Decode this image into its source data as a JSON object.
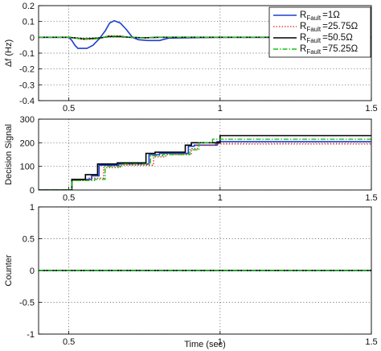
{
  "chart_data": [
    {
      "type": "line",
      "panel": "frequency deviation",
      "ylabel": "Δf (Hz)",
      "ylim": [
        -0.4,
        0.2
      ],
      "xlim": [
        0.4,
        1.5
      ],
      "xticks": [
        "0.5",
        "1",
        "1.5"
      ],
      "yticks": [
        "-0.4",
        "-0.3",
        "-0.2",
        "-0.1",
        "0",
        "0.1",
        "0.2"
      ],
      "grid": true,
      "legend_position": "top-right",
      "legend": [
        {
          "base": "R",
          "sub": "Fault",
          "suffix": "=1Ω"
        },
        {
          "base": "R",
          "sub": "Fault",
          "suffix": "=25.75Ω"
        },
        {
          "base": "R",
          "sub": "Fault",
          "suffix": "=50.5Ω"
        },
        {
          "base": "R",
          "sub": "Fault",
          "suffix": "=75.25Ω"
        }
      ],
      "series": [
        {
          "key": "r1",
          "x": [
            0.4,
            0.5,
            0.51,
            0.52,
            0.53,
            0.56,
            0.58,
            0.6,
            0.62,
            0.635,
            0.65,
            0.67,
            0.69,
            0.71,
            0.73,
            0.76,
            0.8,
            0.83,
            1.0,
            1.5
          ],
          "y": [
            0,
            0,
            -0.02,
            -0.05,
            -0.07,
            -0.07,
            -0.05,
            -0.01,
            0.04,
            0.09,
            0.105,
            0.09,
            0.05,
            0.0,
            -0.015,
            -0.02,
            -0.02,
            -0.005,
            0,
            0
          ]
        },
        {
          "key": "r2",
          "x": [
            0.4,
            0.5,
            0.55,
            0.6,
            0.63,
            0.67,
            0.7,
            0.75,
            0.8,
            1.5
          ],
          "y": [
            0,
            0,
            -0.015,
            -0.01,
            0.01,
            0.01,
            0.0,
            -0.005,
            0,
            0
          ]
        },
        {
          "key": "r3",
          "x": [
            0.4,
            0.5,
            0.55,
            0.6,
            0.63,
            0.67,
            0.7,
            0.75,
            0.8,
            1.5
          ],
          "y": [
            0,
            0,
            -0.01,
            -0.005,
            0.005,
            0.005,
            0.0,
            -0.003,
            0,
            0
          ]
        },
        {
          "key": "r4",
          "x": [
            0.4,
            0.5,
            0.55,
            0.6,
            0.63,
            0.67,
            0.7,
            0.75,
            0.8,
            1.5
          ],
          "y": [
            0,
            0,
            -0.012,
            -0.008,
            0.008,
            0.008,
            0.0,
            -0.004,
            0,
            0
          ]
        }
      ]
    },
    {
      "type": "line",
      "panel": "decision signal",
      "ylabel": "Decision Signal",
      "ylim": [
        0,
        300
      ],
      "xlim": [
        0.4,
        1.5
      ],
      "xticks": [
        "0.5",
        "1",
        "1.5"
      ],
      "yticks": [
        "0",
        "100",
        "200",
        "300"
      ],
      "grid": true,
      "series": [
        {
          "key": "r1",
          "x": [
            0.4,
            0.51,
            0.51,
            0.575,
            0.575,
            0.6,
            0.6,
            0.665,
            0.665,
            0.765,
            0.765,
            0.8,
            0.8,
            0.895,
            0.895,
            0.915,
            0.915,
            0.99,
            0.99,
            1.5
          ],
          "y": [
            0,
            0,
            45,
            45,
            60,
            60,
            105,
            105,
            110,
            110,
            150,
            150,
            155,
            155,
            185,
            185,
            190,
            190,
            205,
            205
          ]
        },
        {
          "key": "r2",
          "x": [
            0.4,
            0.51,
            0.51,
            0.565,
            0.565,
            0.615,
            0.615,
            0.67,
            0.67,
            0.78,
            0.78,
            0.82,
            0.82,
            0.905,
            0.905,
            0.925,
            0.925,
            0.985,
            0.985,
            1.5
          ],
          "y": [
            0,
            0,
            40,
            40,
            50,
            50,
            95,
            95,
            105,
            105,
            140,
            140,
            150,
            150,
            175,
            175,
            190,
            190,
            195,
            195
          ]
        },
        {
          "key": "r3",
          "x": [
            0.4,
            0.51,
            0.51,
            0.555,
            0.555,
            0.595,
            0.595,
            0.66,
            0.66,
            0.755,
            0.755,
            0.785,
            0.785,
            0.885,
            0.885,
            0.905,
            0.905,
            1.0,
            1.0,
            1.5
          ],
          "y": [
            0,
            0,
            45,
            45,
            65,
            65,
            110,
            110,
            115,
            115,
            155,
            155,
            160,
            160,
            190,
            190,
            200,
            200,
            230,
            230
          ]
        },
        {
          "key": "r4",
          "x": [
            0.4,
            0.51,
            0.51,
            0.585,
            0.585,
            0.62,
            0.62,
            0.675,
            0.675,
            0.77,
            0.77,
            0.81,
            0.81,
            0.9,
            0.9,
            0.93,
            0.93,
            0.975,
            0.975,
            1.5
          ],
          "y": [
            0,
            0,
            40,
            40,
            45,
            45,
            100,
            100,
            110,
            110,
            145,
            145,
            150,
            150,
            170,
            170,
            200,
            200,
            215,
            215
          ]
        }
      ]
    },
    {
      "type": "line",
      "panel": "counter",
      "ylabel": "Counter",
      "xlabel": "Time (sec)",
      "ylim": [
        -1,
        1
      ],
      "xlim": [
        0.4,
        1.5
      ],
      "xticks": [
        "0.5",
        "1",
        "1.5"
      ],
      "yticks": [
        "-1",
        "-0.5",
        "0",
        "0.5",
        "1"
      ],
      "grid": true,
      "series": [
        {
          "key": "r1",
          "x": [
            0.4,
            1.5
          ],
          "y": [
            0,
            0
          ]
        },
        {
          "key": "r2",
          "x": [
            0.4,
            1.5
          ],
          "y": [
            0,
            0
          ]
        },
        {
          "key": "r3",
          "x": [
            0.4,
            1.5
          ],
          "y": [
            0,
            0
          ]
        },
        {
          "key": "r4",
          "x": [
            0.4,
            1.5
          ],
          "y": [
            0,
            0
          ]
        }
      ]
    }
  ],
  "series_style": {
    "r1": {
      "color": "#1f3ecf",
      "dash": "",
      "width": 1.6
    },
    "r2": {
      "color": "#e0201a",
      "dash": "1.5,2",
      "width": 1.3
    },
    "r3": {
      "color": "#000000",
      "dash": "",
      "width": 1.6
    },
    "r4": {
      "color": "#18c018",
      "dash": "6,2,1.5,2",
      "width": 1.4
    }
  }
}
